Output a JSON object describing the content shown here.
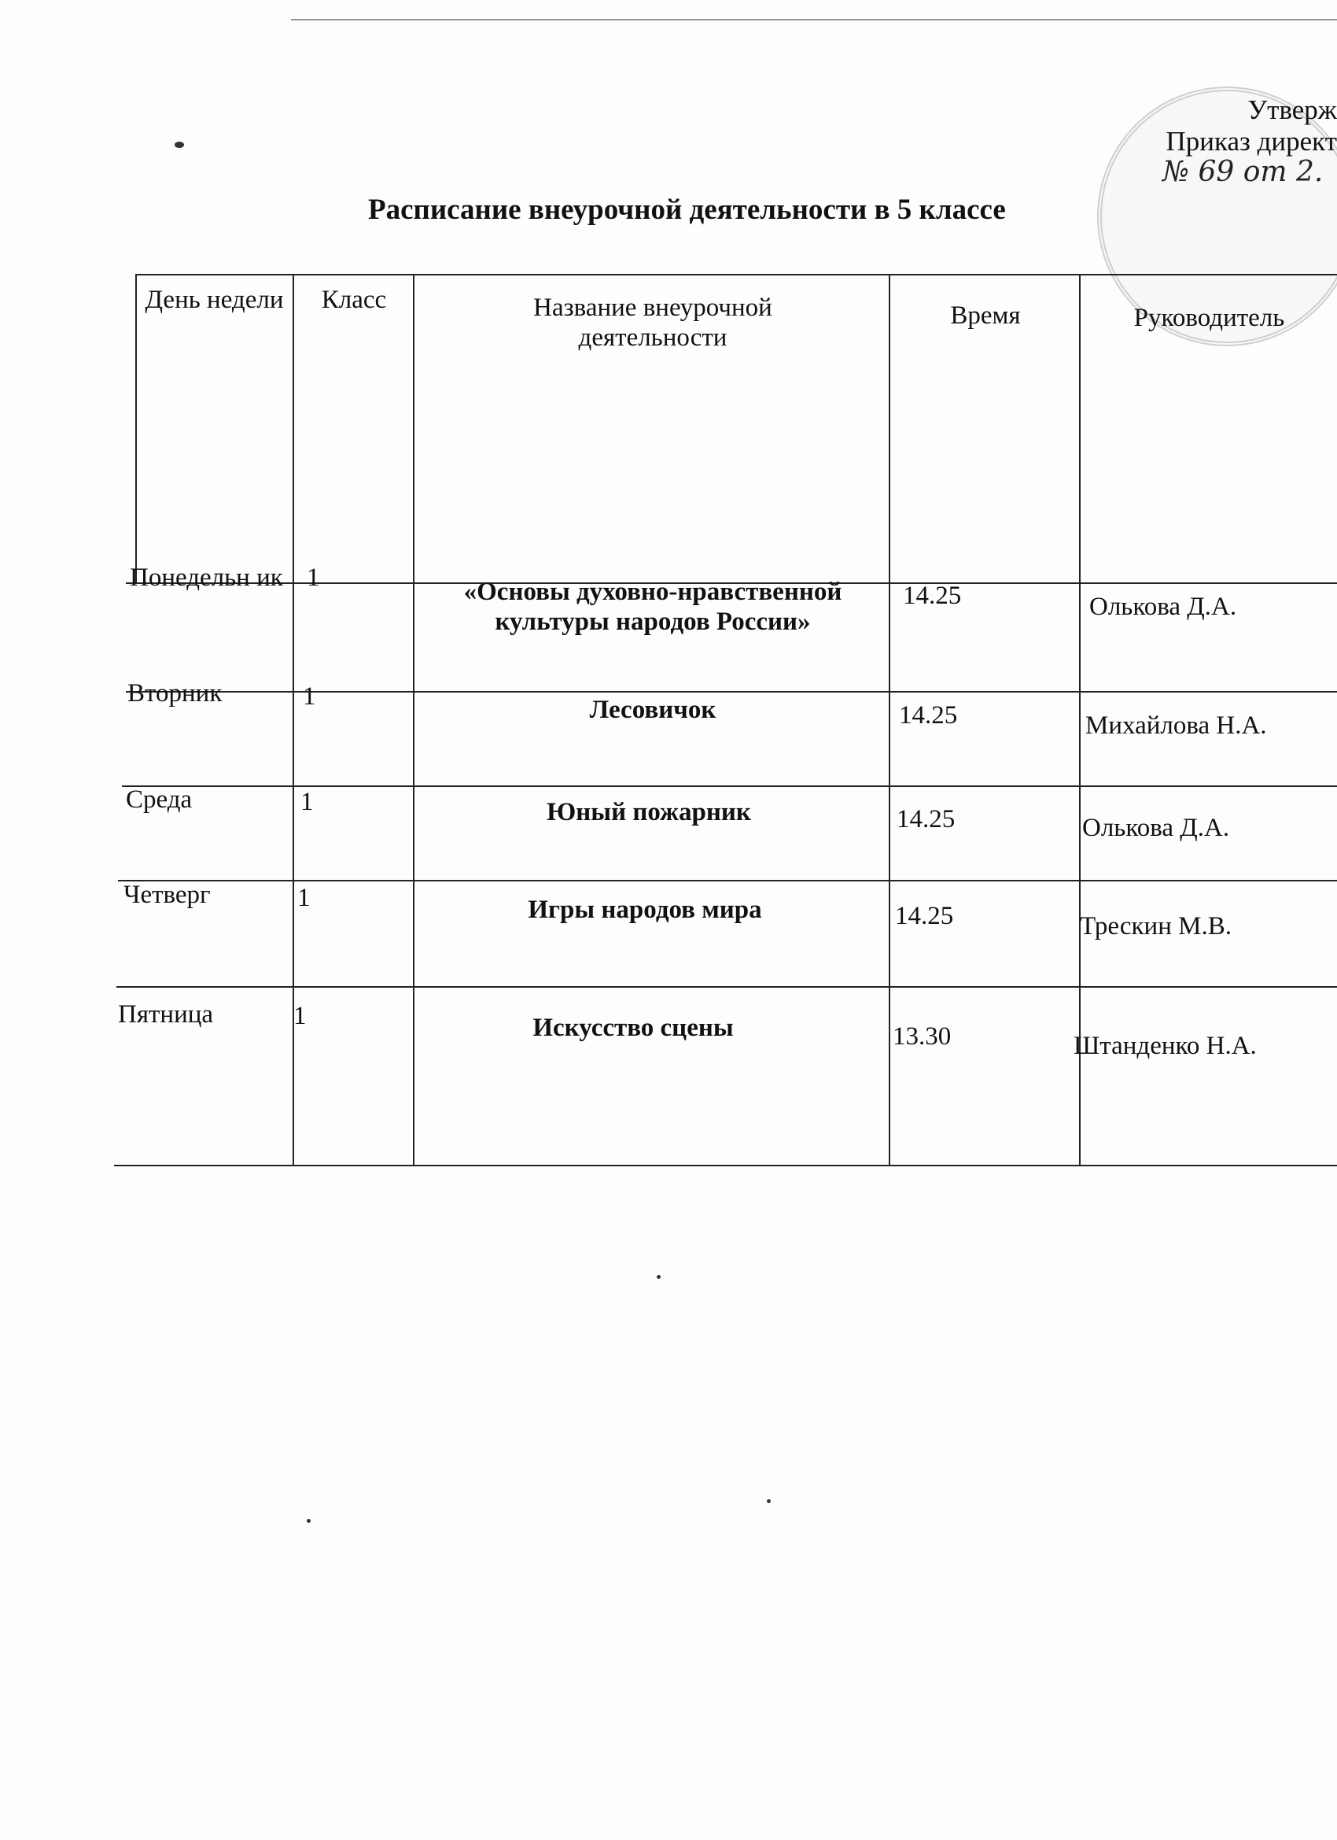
{
  "approval": {
    "line1": "Утверж",
    "line2": "Приказ директ",
    "handwritten": "№ 69 от 2."
  },
  "title": "Расписание внеурочной деятельности в 5  классе",
  "table": {
    "headers": [
      "День недели",
      "Класс",
      "Название внеурочной деятельности",
      "Время",
      "Руководитель"
    ],
    "rows": [
      {
        "day": "Понедельн ик",
        "class": "1",
        "activity": "«Основы духовно-нравственной культуры народов России»",
        "time": "14.25",
        "teacher": "Олькова Д.А."
      },
      {
        "day": "Вторник",
        "class": "1",
        "activity": "Лесовичок",
        "time": "14.25",
        "teacher": "Михайлова Н.А."
      },
      {
        "day": "Среда",
        "class": "1",
        "activity": "Юный пожарник",
        "time": "14.25",
        "teacher": "Олькова Д.А."
      },
      {
        "day": "Четверг",
        "class": "1",
        "activity": "Игры народов мира",
        "time": "14.25",
        "teacher": "Трескин М.В."
      },
      {
        "day": "Пятница",
        "class": "1",
        "activity": "Искусство сцены",
        "time": "13.30",
        "teacher": "Штанденко Н.А."
      }
    ]
  }
}
